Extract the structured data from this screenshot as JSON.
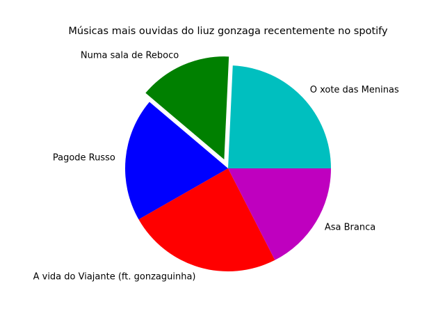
{
  "chart_data": {
    "type": "pie",
    "title": "Músicas mais ouvidas do liuz gonzaga recentemente no spotify",
    "categories": [
      "O xote das Meninas",
      "Numa sala de Reboco",
      "Pagode Russo",
      "A vida do Viajante (ft. gonzaguinha)",
      "Asa Branca"
    ],
    "values": [
      25,
      15,
      20,
      25,
      18
    ],
    "colors": [
      "#00bfbf",
      "#008000",
      "#0000ff",
      "#ff0000",
      "#bf00bf"
    ],
    "exploded": [
      false,
      true,
      false,
      false,
      false
    ],
    "start_angle_deg": 0,
    "direction": "counterclockwise",
    "legend": "none"
  }
}
